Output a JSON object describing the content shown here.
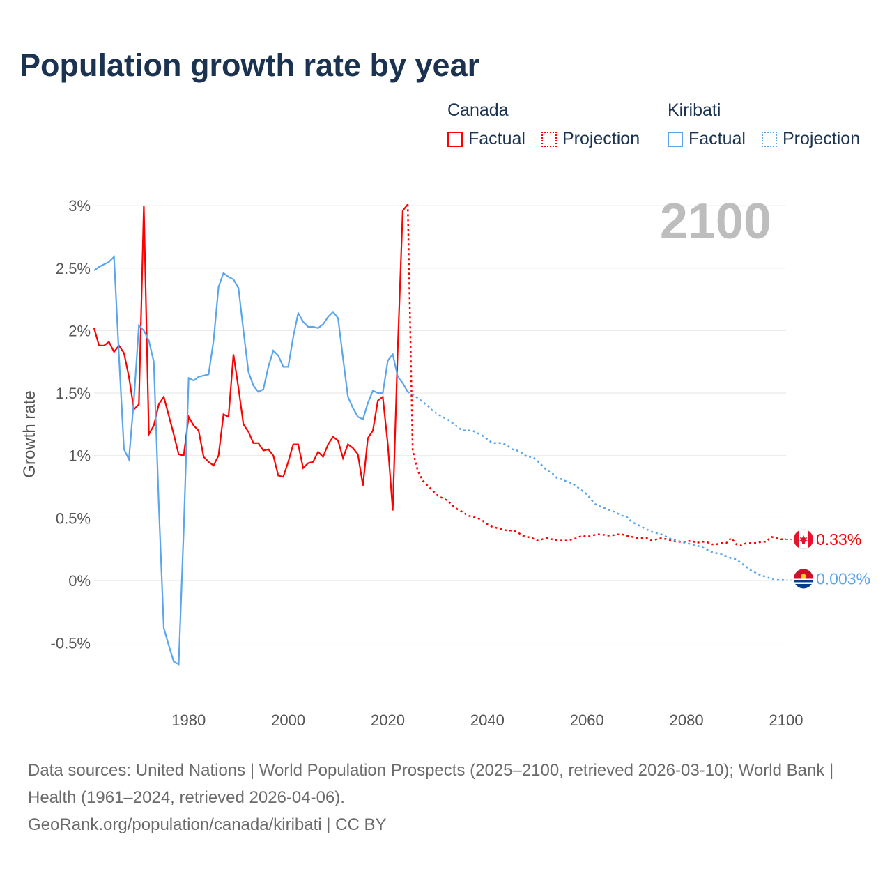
{
  "title": "Population growth rate by year",
  "legend": {
    "groups": [
      {
        "country": "Canada",
        "color": "#ff0000",
        "items": [
          "Factual",
          "Projection"
        ]
      },
      {
        "country": "Kiribati",
        "color": "#5aa6ec",
        "items": [
          "Factual",
          "Projection"
        ]
      }
    ]
  },
  "footer": {
    "sources": "Data sources: United Nations | World Population Prospects (2025–2100, retrieved 2026-03-10); World Bank | Health (1961–2024, retrieved 2026-04-06).",
    "credit": "GeoRank.org/population/canada/kiribati | CC BY"
  },
  "chart_data": {
    "type": "line",
    "title": "Population growth rate by year",
    "ylabel": "Growth rate",
    "xlabel": "",
    "year_indicator": "2100",
    "xlim": [
      1961,
      2100
    ],
    "ylim": [
      -0.85,
      3.1
    ],
    "xticks": [
      1980,
      2000,
      2020,
      2040,
      2060,
      2080,
      2100
    ],
    "yticks": [
      -0.5,
      0,
      0.5,
      1,
      1.5,
      2,
      2.5,
      3
    ],
    "ytick_labels": [
      "-0.5%",
      "0%",
      "0.5%",
      "1%",
      "1.5%",
      "2%",
      "2.5%",
      "3%"
    ],
    "grid": true,
    "series": [
      {
        "name": "Canada",
        "color": "#ff0000",
        "end_label": "0.33%",
        "factual_start": 1961,
        "factual": [
          2.02,
          1.88,
          1.88,
          1.91,
          1.83,
          1.88,
          1.82,
          1.63,
          1.37,
          1.41,
          3.0,
          1.17,
          1.24,
          1.41,
          1.47,
          1.32,
          1.17,
          1.01,
          1.0,
          1.31,
          1.24,
          1.2,
          0.99,
          0.95,
          0.92,
          1.0,
          1.33,
          1.31,
          1.81,
          1.54,
          1.25,
          1.19,
          1.1,
          1.1,
          1.04,
          1.05,
          1.0,
          0.84,
          0.83,
          0.95,
          1.09,
          1.09,
          0.9,
          0.94,
          0.95,
          1.03,
          0.99,
          1.09,
          1.15,
          1.12,
          0.98,
          1.09,
          1.06,
          1.01,
          0.76,
          1.14,
          1.2,
          1.44,
          1.47,
          1.09,
          0.56,
          1.86,
          2.96,
          3.01
        ],
        "projection_start": 2025,
        "projection": [
          1.04,
          0.88,
          0.8,
          0.76,
          0.72,
          0.68,
          0.66,
          0.64,
          0.6,
          0.57,
          0.55,
          0.52,
          0.51,
          0.5,
          0.48,
          0.45,
          0.43,
          0.42,
          0.41,
          0.4,
          0.4,
          0.39,
          0.36,
          0.35,
          0.34,
          0.32,
          0.33,
          0.34,
          0.33,
          0.32,
          0.32,
          0.32,
          0.33,
          0.34,
          0.36,
          0.35,
          0.36,
          0.37,
          0.37,
          0.36,
          0.36,
          0.37,
          0.37,
          0.36,
          0.35,
          0.34,
          0.34,
          0.34,
          0.32,
          0.33,
          0.34,
          0.33,
          0.32,
          0.31,
          0.31,
          0.31,
          0.32,
          0.3,
          0.31,
          0.31,
          0.29,
          0.29,
          0.3,
          0.3,
          0.34,
          0.29,
          0.28,
          0.3,
          0.3,
          0.3,
          0.31,
          0.31,
          0.35,
          0.34,
          0.33,
          0.33
        ]
      },
      {
        "name": "Kiribati",
        "color": "#5aa6ec",
        "end_label": "0.003%",
        "factual_start": 1961,
        "factual": [
          2.48,
          2.51,
          2.53,
          2.55,
          2.59,
          1.8,
          1.05,
          0.97,
          1.45,
          2.04,
          2.0,
          1.92,
          1.75,
          0.6,
          -0.38,
          -0.52,
          -0.65,
          -0.67,
          0.4,
          1.62,
          1.6,
          1.63,
          1.64,
          1.65,
          1.92,
          2.35,
          2.46,
          2.43,
          2.41,
          2.34,
          2.0,
          1.67,
          1.56,
          1.51,
          1.53,
          1.71,
          1.84,
          1.8,
          1.71,
          1.71,
          1.95,
          2.14,
          2.07,
          2.03,
          2.03,
          2.02,
          2.05,
          2.11,
          2.15,
          2.1,
          1.78,
          1.47,
          1.38,
          1.31,
          1.29,
          1.42,
          1.52,
          1.5,
          1.5,
          1.76,
          1.81,
          1.63,
          1.58,
          1.51
        ],
        "projection_start": 2025,
        "projection": [
          1.49,
          1.46,
          1.43,
          1.4,
          1.36,
          1.33,
          1.31,
          1.29,
          1.26,
          1.23,
          1.2,
          1.2,
          1.2,
          1.18,
          1.16,
          1.13,
          1.1,
          1.1,
          1.1,
          1.08,
          1.05,
          1.04,
          1.02,
          0.99,
          0.99,
          0.96,
          0.92,
          0.88,
          0.86,
          0.82,
          0.81,
          0.79,
          0.78,
          0.75,
          0.72,
          0.69,
          0.64,
          0.6,
          0.59,
          0.57,
          0.56,
          0.54,
          0.52,
          0.51,
          0.47,
          0.45,
          0.43,
          0.41,
          0.39,
          0.38,
          0.37,
          0.35,
          0.33,
          0.32,
          0.31,
          0.3,
          0.29,
          0.28,
          0.27,
          0.25,
          0.23,
          0.22,
          0.21,
          0.19,
          0.18,
          0.17,
          0.14,
          0.11,
          0.08,
          0.06,
          0.04,
          0.03,
          0.01,
          0.005,
          0.004,
          0.003
        ]
      }
    ]
  }
}
